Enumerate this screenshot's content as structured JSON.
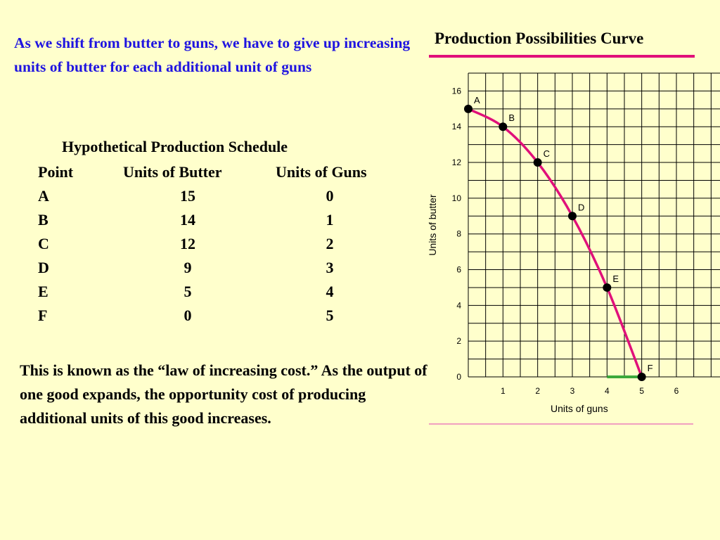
{
  "intro_text": "As we shift from butter to guns, we have to give up increasing units of butter  for each additional unit of guns",
  "schedule": {
    "title": "Hypothetical Production Schedule",
    "headers": [
      "Point",
      "Units of Butter",
      "Units of Guns"
    ],
    "rows": [
      {
        "point": "A",
        "butter": "15",
        "guns": "0"
      },
      {
        "point": "B",
        "butter": "14",
        "guns": "1"
      },
      {
        "point": "C",
        "butter": "12",
        "guns": "2"
      },
      {
        "point": "D",
        "butter": "9",
        "guns": "3"
      },
      {
        "point": "E",
        "butter": "5",
        "guns": "4"
      },
      {
        "point": "F",
        "butter": "0",
        "guns": "5"
      }
    ]
  },
  "conclusion_text": "This is known as the “law of increasing cost.” As the output of one good expands, the opportunity cost of producing additional units of this good increases.",
  "colors": {
    "background": "#FFFFCC",
    "intro_text": "#1F14E0",
    "curve": "#E0107A",
    "title_rule": "#E0107A",
    "highlight_segment": "#3CA83C",
    "points": "#000000",
    "grid": "#000000"
  },
  "chart_data": {
    "type": "line",
    "title": "Production Possibilities Curve",
    "xlabel": "Units of guns",
    "ylabel": "Units of butter",
    "xlim": [
      0,
      6
    ],
    "ylim": [
      0,
      17
    ],
    "x_ticks": [
      "1",
      "2",
      "3",
      "4",
      "5",
      "6"
    ],
    "y_ticks": [
      "0",
      "2",
      "4",
      "6",
      "8",
      "10",
      "12",
      "14",
      "16"
    ],
    "x_grid_step": 0.5,
    "y_grid_step": 1,
    "grid": true,
    "series": [
      {
        "points": [
          {
            "label": "A",
            "x": 0,
            "y": 15
          },
          {
            "label": "B",
            "x": 1,
            "y": 14
          },
          {
            "label": "C",
            "x": 2,
            "y": 12
          },
          {
            "label": "D",
            "x": 3,
            "y": 9
          },
          {
            "label": "E",
            "x": 4,
            "y": 5
          },
          {
            "label": "F",
            "x": 5,
            "y": 0
          }
        ]
      }
    ],
    "highlight": {
      "x_from": 4,
      "x_to": 5,
      "y": 0
    }
  }
}
